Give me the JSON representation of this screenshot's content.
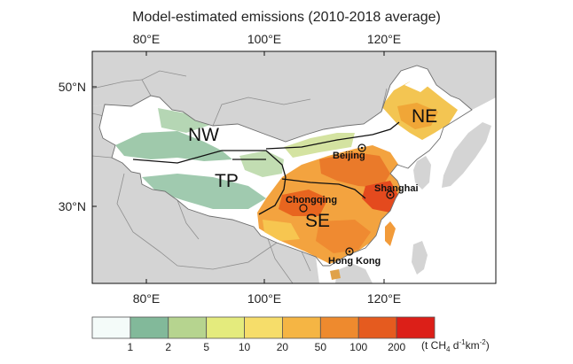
{
  "title": "Model-estimated emissions (2010-2018 average)",
  "axes": {
    "lon_labels": [
      "80°E",
      "100°E",
      "120°E"
    ],
    "lat_labels": [
      "50°N",
      "30°N"
    ]
  },
  "regions": {
    "nw": "NW",
    "tp": "TP",
    "ne": "NE",
    "se": "SE"
  },
  "cities": {
    "beijing": "Beijing",
    "shanghai": "Shanghai",
    "chongqing": "Chongqing",
    "hong_kong": "Hong Kong"
  },
  "colorbar": {
    "colors": [
      "#f4fbf9",
      "#82b99a",
      "#b6d48f",
      "#e4eb7d",
      "#f6dd6a",
      "#f5b544",
      "#ee8a2e",
      "#e55b1f",
      "#dc1f18"
    ],
    "tick_labels": [
      "1",
      "2",
      "5",
      "10",
      "20",
      "50",
      "100",
      "200"
    ],
    "unit_text": "(t CH",
    "unit_sub4": "4",
    "unit_mid": " d",
    "unit_sup1": "-1",
    "unit_km": "km",
    "unit_sup2": "-2",
    "unit_close": ")"
  },
  "legend_colors": {
    "ocean": "#ffffff",
    "land_other": "#d4d4d4",
    "china_base": "#ffffff",
    "borders": "#8f8f8f"
  }
}
